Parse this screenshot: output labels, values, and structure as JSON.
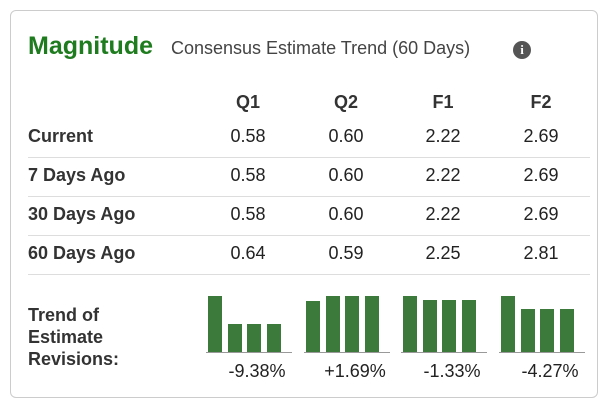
{
  "header": {
    "title": "Magnitude",
    "subtitle": "Consensus Estimate Trend (60 Days)"
  },
  "table": {
    "columns": [
      "Q1",
      "Q2",
      "F1",
      "F2"
    ],
    "rows": [
      {
        "label": "Current",
        "values": [
          "0.58",
          "0.60",
          "2.22",
          "2.69"
        ]
      },
      {
        "label": "7 Days Ago",
        "values": [
          "0.58",
          "0.60",
          "2.22",
          "2.69"
        ]
      },
      {
        "label": "30 Days Ago",
        "values": [
          "0.58",
          "0.60",
          "2.22",
          "2.69"
        ]
      },
      {
        "label": "60 Days Ago",
        "values": [
          "0.64",
          "0.59",
          "2.25",
          "2.81"
        ]
      }
    ]
  },
  "trend": {
    "label": "Trend of Estimate Revisions:",
    "changes": [
      "-9.38%",
      "+1.69%",
      "-1.33%",
      "-4.27%"
    ]
  }
}
